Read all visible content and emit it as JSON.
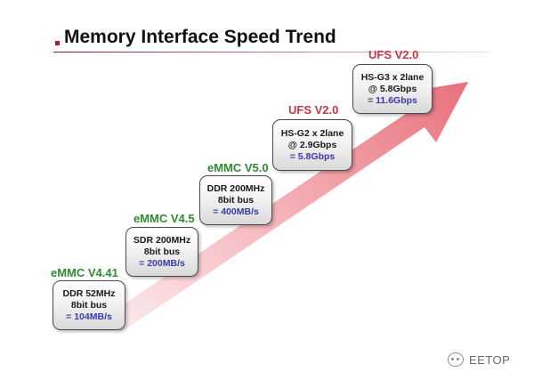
{
  "title": "Memory Interface Speed Trend",
  "colors": {
    "emmc_label": "#2e8b2e",
    "ufs_label": "#c0394a",
    "speed_text": "#3a3aa8",
    "arrow_start": "#fbe9ea",
    "arrow_end": "#e8707c",
    "title_accent": "#a31d2a"
  },
  "stages": [
    {
      "label": "eMMC V4.41",
      "line1": "DDR 52MHz",
      "line2": "8bit bus",
      "speed": "= 104MB/s"
    },
    {
      "label": "eMMC V4.5",
      "line1": "SDR 200MHz",
      "line2": "8bit bus",
      "speed": "= 200MB/s"
    },
    {
      "label": "eMMC V5.0",
      "line1": "DDR 200MHz",
      "line2": "8bit bus",
      "speed": "= 400MB/s"
    },
    {
      "label": "UFS V2.0",
      "line1": "HS-G2 x 2lane",
      "line2": "@ 2.9Gbps",
      "speed": "= 5.8Gbps"
    },
    {
      "label": "UFS V2.0",
      "line1": "HS-G3 x 2lane",
      "line2": "@ 5.8Gbps",
      "speed": "= 11.6Gbps"
    }
  ],
  "watermark": {
    "text": "EETOP",
    "icon": "wechat-icon"
  }
}
